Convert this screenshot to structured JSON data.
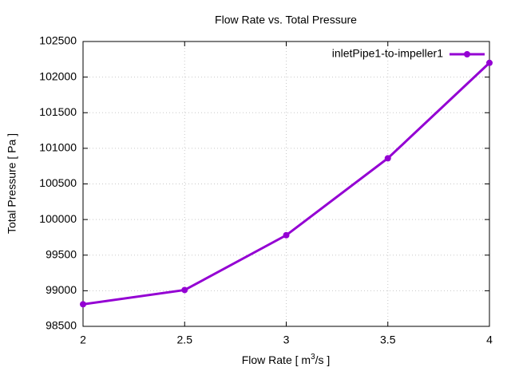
{
  "chart_data": {
    "type": "line",
    "title": "Flow Rate vs. Total Pressure",
    "x_label": [
      "Flow Rate [ m",
      "3",
      "/s ]"
    ],
    "y_label": "Total Pressure [ Pa ]",
    "x": [
      2,
      2.5,
      3,
      3.5,
      4
    ],
    "series": [
      {
        "name": "inletPipe1-to-impeller1",
        "color": "#9400d3",
        "values": [
          98810,
          99010,
          99780,
          100860,
          102200
        ]
      }
    ],
    "xlim": [
      2,
      4
    ],
    "xticks": [
      2,
      2.5,
      3,
      3.5,
      4
    ],
    "ylim": [
      98500,
      102500
    ],
    "yticks": [
      98500,
      99000,
      99500,
      100000,
      100500,
      101000,
      101500,
      102000,
      102500
    ],
    "grid": true,
    "legend": "top-right"
  }
}
